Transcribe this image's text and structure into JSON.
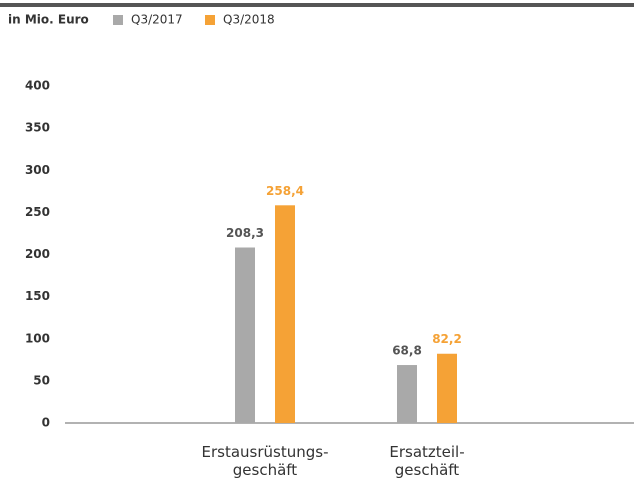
{
  "chart_data": {
    "type": "bar",
    "unit_label": "in Mio. Euro",
    "categories": [
      "Erstausrüstungs-\ngeschäft",
      "Ersatzteil-\ngeschäft"
    ],
    "series": [
      {
        "name": "Q3/2017",
        "color": "#a9a9a9",
        "label_color": "#555555",
        "values": [
          208.3,
          68.8
        ],
        "value_labels": [
          "208,3",
          "68,8"
        ]
      },
      {
        "name": "Q3/2018",
        "color": "#f5a236",
        "label_color": "#f5a236",
        "values": [
          258.4,
          82.2
        ],
        "value_labels": [
          "258,4",
          "82,2"
        ]
      }
    ],
    "ylim": [
      0,
      400
    ],
    "yticks": [
      0,
      50,
      100,
      150,
      200,
      250,
      300,
      350,
      400
    ],
    "grid": false
  }
}
